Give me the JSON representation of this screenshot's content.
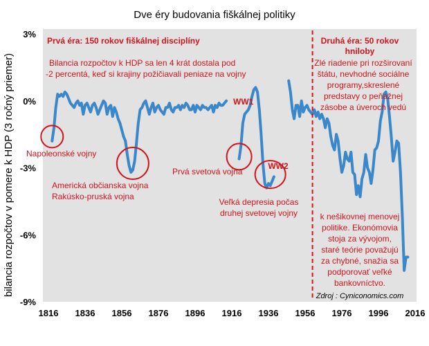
{
  "chart_data": {
    "type": "line",
    "title": "Dve éry budovania fiškálnej politiky",
    "ylabel": "bilancia rozpočtov v pomere k HDP (3 ročný priemer)",
    "xlabel": "",
    "xlim": [
      1816,
      2016
    ],
    "ylim": [
      -9,
      3
    ],
    "x_ticks": [
      "1816",
      "1836",
      "1856",
      "1876",
      "1896",
      "1916",
      "1936",
      "1956",
      "1976",
      "1996",
      "2016"
    ],
    "y_ticks": [
      "3%",
      "0%",
      "-3%",
      "-6%",
      "-9%"
    ],
    "grid": false,
    "line_color": "#3a87c9",
    "plot_bg": "#e2e2e2",
    "accent_color": "#d0141b",
    "series": [
      {
        "name": "",
        "x": [
          1818,
          1819,
          1820,
          1821,
          1822,
          1823,
          1824,
          1825,
          1826,
          1827,
          1828,
          1829,
          1830,
          1831,
          1832,
          1833,
          1834,
          1835,
          1836,
          1837,
          1838,
          1839,
          1840,
          1841,
          1842,
          1843,
          1844,
          1845,
          1846,
          1847,
          1848,
          1849,
          1850,
          1851,
          1852,
          1853,
          1854,
          1855,
          1856,
          1857,
          1858,
          1859,
          1860,
          1861,
          1862,
          1863,
          1864,
          1865,
          1866,
          1867,
          1868,
          1869,
          1870,
          1871,
          1872,
          1873,
          1874,
          1875,
          1876,
          1877,
          1878,
          1879,
          1880,
          1881,
          1882,
          1883,
          1884,
          1885,
          1886,
          1887,
          1888,
          1889,
          1890,
          1891,
          1892,
          1893,
          1894,
          1895,
          1896,
          1897,
          1898,
          1899,
          1900,
          1901,
          1902,
          1903,
          1904,
          1905,
          1906,
          1907,
          1908,
          1909,
          1910,
          1911,
          1912,
          1913
        ],
        "y": [
          -1.8,
          -1.2,
          -0.3,
          0.3,
          0.2,
          0.3,
          0.2,
          0.4,
          0.3,
          0.1,
          -0.1,
          -0.2,
          -0.3,
          -0.1,
          0.0,
          -0.2,
          -0.1,
          -0.6,
          -0.2,
          -0.1,
          -0.3,
          -0.5,
          -0.2,
          -0.1,
          -0.3,
          -0.6,
          -0.4,
          -0.2,
          0.0,
          -0.1,
          -0.6,
          -0.3,
          -0.2,
          -0.7,
          -0.3,
          -0.5,
          -0.8,
          -1.0,
          -1.3,
          -1.6,
          -1.8,
          -2.4,
          -2.9,
          -3.2,
          -3.1,
          -2.7,
          -1.9,
          -1.0,
          -0.4,
          -0.3,
          -0.1,
          0.0,
          -0.3,
          -0.6,
          -0.3,
          -0.1,
          -0.5,
          -0.3,
          -0.2,
          -0.4,
          -0.5,
          -0.6,
          -0.3,
          -0.3,
          -0.1,
          -0.4,
          -0.5,
          -0.3,
          -0.3,
          -0.2,
          -0.4,
          -0.2,
          -0.3,
          -0.1,
          -0.2,
          -0.4,
          -0.4,
          -0.2,
          -0.5,
          -0.2,
          -0.3,
          -0.4,
          -0.2,
          -0.3,
          -0.3,
          -0.4,
          -0.3,
          -0.2,
          -0.5,
          -0.2,
          -0.3,
          -0.1,
          -0.2,
          -0.2,
          -0.1,
          0.0
        ]
      },
      {
        "name": "",
        "x": [
          1920,
          1921,
          1922,
          1923,
          1924,
          1925,
          1926,
          1927,
          1928,
          1929,
          1930,
          1931,
          1932,
          1933,
          1934,
          1935,
          1936,
          1937,
          1938,
          1939
        ],
        "y": [
          -2.6,
          -2.0,
          -1.0,
          -0.6,
          -0.5,
          -0.4,
          -0.2,
          0.2,
          0.5,
          0.6,
          0.4,
          -0.4,
          -1.5,
          -2.8,
          -3.7,
          -3.9,
          -3.7,
          -3.8,
          -3.6,
          -3.4
        ]
      },
      {
        "name": "",
        "x": [
          1947,
          1948,
          1949,
          1950,
          1951,
          1952,
          1953,
          1954,
          1955,
          1956,
          1957,
          1958,
          1959,
          1960,
          1961,
          1962,
          1963,
          1964,
          1965,
          1966,
          1967,
          1968,
          1969,
          1970,
          1971,
          1972,
          1973,
          1974,
          1975,
          1976,
          1977,
          1978,
          1979,
          1980,
          1981,
          1982,
          1983,
          1984,
          1985,
          1986,
          1987,
          1988,
          1989,
          1990,
          1991,
          1992,
          1993,
          1994,
          1995,
          1996,
          1997,
          1998,
          1999,
          2000,
          2001,
          2002,
          2003,
          2004,
          2005,
          2006,
          2007,
          2008,
          2009,
          2010,
          2011,
          2012
        ],
        "y": [
          0.9,
          0.4,
          -0.4,
          -0.8,
          -0.2,
          -0.2,
          -0.7,
          0.0,
          -0.5,
          -0.3,
          -0.2,
          -0.4,
          -0.5,
          -0.6,
          -0.4,
          -0.7,
          -0.5,
          -0.8,
          -0.6,
          -0.8,
          -1.2,
          -0.8,
          -1.0,
          -1.6,
          -2.0,
          -2.2,
          -1.5,
          -1.8,
          -2.6,
          -3.2,
          -2.9,
          -2.3,
          -2.6,
          -2.7,
          -2.3,
          -3.2,
          -3.3,
          -4.2,
          -3.8,
          -4.3,
          -3.5,
          -3.2,
          -2.4,
          -3.0,
          -3.2,
          -3.7,
          -3.1,
          -2.2,
          -2.1,
          -1.8,
          -0.9,
          -0.5,
          0.3,
          0.4,
          0.1,
          -0.7,
          -1.6,
          -2.7,
          -2.3,
          -1.8,
          -1.9,
          -3.2,
          -5.2,
          -7.6,
          -7.0,
          -7.0
        ]
      }
    ],
    "eras": [
      {
        "name": "Prvá éra: 150 rokov fiškálnej disciplíny",
        "from": 1816,
        "to": 1960
      },
      {
        "name_lines": [
          "Druhá éra: 50 rokov",
          "hniloby"
        ],
        "from": 1960,
        "to": 2016
      }
    ],
    "divider_x": 1960,
    "annotations": {
      "intro_lines": [
        "Bilancia rozpočtov k HDP sa len 4 krát dostala pod",
        "-2 percentá, keď si krajiny požičiavali peniaze na vojny"
      ],
      "napoleon": "Napoleonské vojny",
      "civil_lines": [
        "Americká občianska vojna",
        "Rakúsko-pruská vojna"
      ],
      "ww1_label": "Prvá svetová vojna",
      "depression_lines": [
        "Veľká depresia počas",
        "druhej svetovej vojny"
      ],
      "second_era_lines": [
        "Zlé riadenie pri rozširovaní",
        "štátu, nevhodné sociálne",
        "programy,skreslené",
        "predstavy o peňažnej",
        "zásobe a úveroch vedú"
      ],
      "monetary_lines": [
        "k nešikovnej menovej",
        "politike. Ekonómovia",
        "stoja za vývojom,",
        "staré teórie považujú",
        "za chybné, snažia sa",
        "podporovať veľké",
        "bankovníctvo."
      ],
      "ww1_tag": "WW1",
      "ww2_tag": "WW2",
      "source": "Zdroj : Cyniconomics.com"
    },
    "circles": [
      {
        "name": "napoleon-circle",
        "x": 1818,
        "y": -1.6
      },
      {
        "name": "civil-war-circle",
        "x": 1862,
        "y": -2.8
      },
      {
        "name": "ww1-circle",
        "x": 1920,
        "y": -2.5
      },
      {
        "name": "ww2-circle",
        "x": 1937,
        "y": -3.3
      }
    ]
  }
}
